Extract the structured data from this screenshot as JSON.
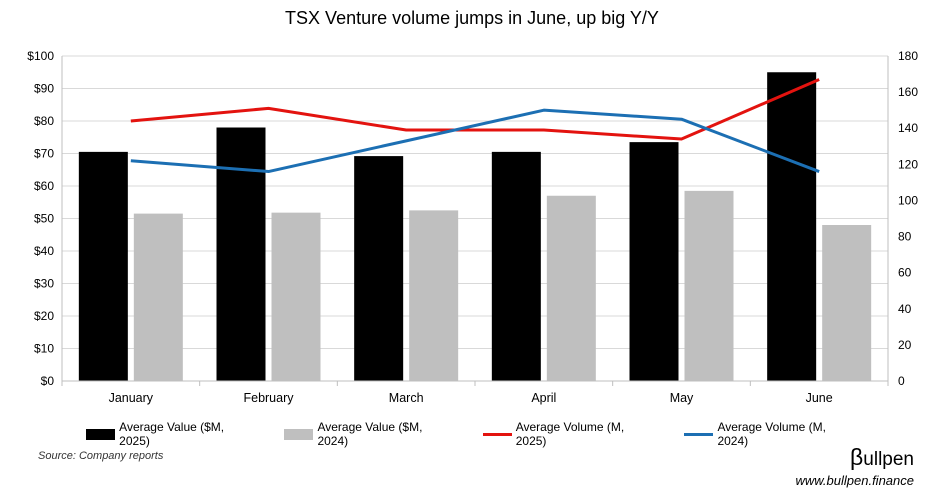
{
  "chart_data": {
    "type": "bar",
    "title": "TSX Venture volume jumps in June, up big Y/Y",
    "categories": [
      "January",
      "February",
      "March",
      "April",
      "May",
      "June"
    ],
    "series": [
      {
        "name": "Average Value ($M, 2025)",
        "kind": "bar",
        "axis": "left",
        "color": "#000000",
        "values": [
          70.5,
          78,
          69.2,
          70.5,
          73.5,
          95
        ]
      },
      {
        "name": "Average Value ($M, 2024)",
        "kind": "bar",
        "axis": "left",
        "color": "#bfbfbf",
        "values": [
          51.5,
          51.8,
          52.5,
          57,
          58.5,
          48
        ]
      },
      {
        "name": "Average Volume (M, 2025)",
        "kind": "line",
        "axis": "right",
        "color": "#e3130f",
        "values": [
          144,
          151,
          139,
          139,
          134,
          167
        ]
      },
      {
        "name": "Average Volume (M, 2024)",
        "kind": "line",
        "axis": "right",
        "color": "#1c6fb3",
        "values": [
          122,
          116,
          133,
          150,
          145,
          116
        ]
      }
    ],
    "y_left": {
      "min": 0,
      "max": 100,
      "ticks": [
        "$0",
        "$10",
        "$20",
        "$30",
        "$40",
        "$50",
        "$60",
        "$70",
        "$80",
        "$90",
        "$100"
      ]
    },
    "y_right": {
      "min": 0,
      "max": 180,
      "ticks": [
        "0",
        "20",
        "40",
        "60",
        "80",
        "100",
        "120",
        "140",
        "160",
        "180"
      ]
    },
    "grid": true,
    "legend_position": "bottom"
  },
  "footer": {
    "source": "Source: Company reports",
    "brand_beta": "β",
    "brand_rest": "ullpen",
    "website": "www.bullpen.finance"
  }
}
